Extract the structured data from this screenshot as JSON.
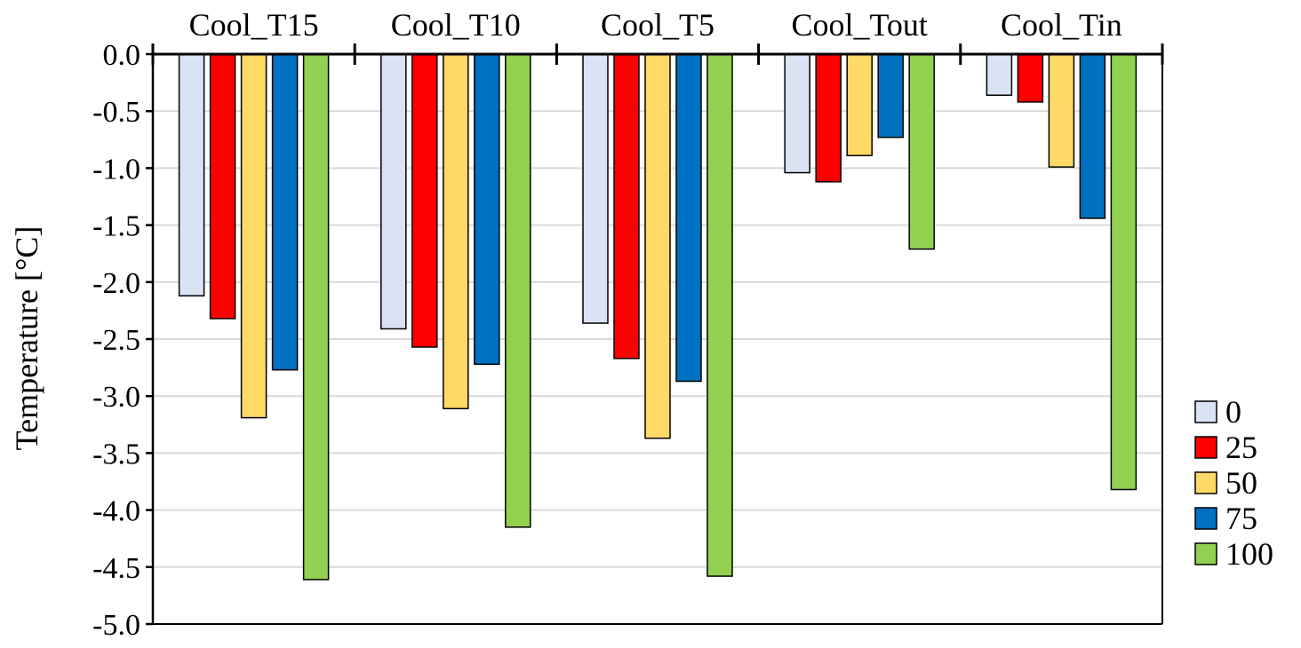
{
  "chart_data": {
    "type": "bar",
    "title": "",
    "xlabel": "",
    "ylabel": "Temperature [°C]",
    "ylim": [
      -5.0,
      0.0
    ],
    "yticks": [
      "0.0",
      "-0.5",
      "-1.0",
      "-1.5",
      "-2.0",
      "-2.5",
      "-3.0",
      "-3.5",
      "-4.0",
      "-4.5",
      "-5.0"
    ],
    "ytick_values": [
      0.0,
      -0.5,
      -1.0,
      -1.5,
      -2.0,
      -2.5,
      -3.0,
      -3.5,
      -4.0,
      -4.5,
      -5.0
    ],
    "grid": true,
    "category_axis_position": "top",
    "legend_position": "right",
    "categories": [
      "Cool_T15",
      "Cool_T10",
      "Cool_T5",
      "Cool_Tout",
      "Cool_Tin"
    ],
    "series": [
      {
        "name": "0",
        "color": "#dae3f3",
        "values": [
          -2.12,
          -2.41,
          -2.36,
          -1.04,
          -0.36
        ]
      },
      {
        "name": "25",
        "color": "#ff0000",
        "values": [
          -2.32,
          -2.57,
          -2.67,
          -1.12,
          -0.42
        ]
      },
      {
        "name": "50",
        "color": "#ffd966",
        "values": [
          -3.19,
          -3.11,
          -3.37,
          -0.89,
          -0.99
        ]
      },
      {
        "name": "75",
        "color": "#0070c0",
        "values": [
          -2.77,
          -2.72,
          -2.87,
          -0.73,
          -1.44
        ]
      },
      {
        "name": "100",
        "color": "#92d050",
        "values": [
          -4.61,
          -4.15,
          -4.58,
          -1.71,
          -3.82
        ]
      }
    ]
  }
}
